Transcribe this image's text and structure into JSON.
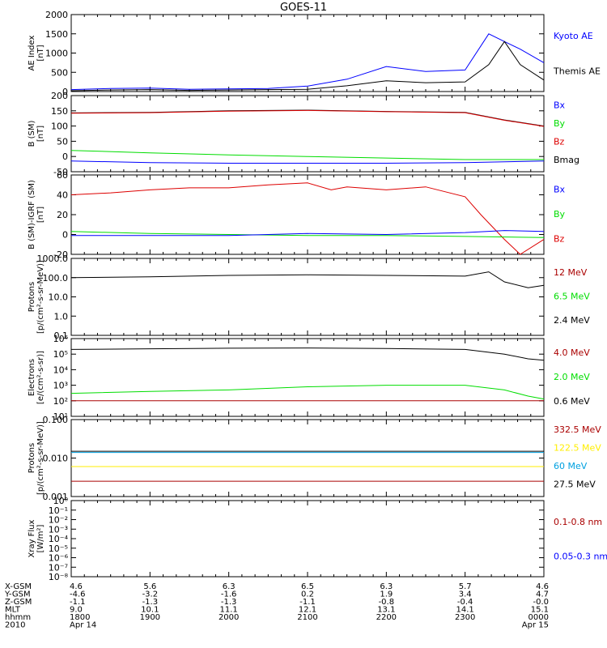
{
  "title": "GOES-11",
  "colors": {
    "blue": "#0000ff",
    "black": "#000000",
    "green": "#00dd00",
    "red": "#dd0000",
    "darkred": "#aa0000",
    "yellow": "#ffee00",
    "cyan": "#00a0e0"
  },
  "panels": [
    {
      "id": "ae",
      "ylabel": [
        "AE Index",
        "[nT]"
      ],
      "scale": "linear",
      "ylim": [
        0,
        2000
      ],
      "ticks": [
        "0",
        "500",
        "1000",
        "1500",
        "2000"
      ],
      "tick_values": [
        0,
        500,
        1000,
        1500,
        2000
      ],
      "legend": [
        {
          "label": "Kyoto AE",
          "color": "#0000ff"
        },
        {
          "label": "Themis AE",
          "color": "#000000"
        }
      ]
    },
    {
      "id": "b_sm",
      "ylabel": [
        "B (SM)",
        "[nT]"
      ],
      "scale": "linear",
      "ylim": [
        -50,
        200
      ],
      "ticks": [
        "-50",
        "0",
        "50",
        "100",
        "150",
        "200"
      ],
      "tick_values": [
        -50,
        0,
        50,
        100,
        150,
        200
      ],
      "legend": [
        {
          "label": "Bx",
          "color": "#0000ff"
        },
        {
          "label": "By",
          "color": "#00dd00"
        },
        {
          "label": "Bz",
          "color": "#dd0000"
        },
        {
          "label": "Bmag",
          "color": "#000000"
        }
      ]
    },
    {
      "id": "b_minus_igrf",
      "ylabel": [
        "B (SM)-IGRF (SM)",
        "[nT]"
      ],
      "scale": "linear",
      "ylim": [
        -20,
        60
      ],
      "ticks": [
        "-20",
        "0",
        "20",
        "40",
        "60"
      ],
      "tick_values": [
        -20,
        0,
        20,
        40,
        60
      ],
      "legend": [
        {
          "label": "Bx",
          "color": "#0000ff"
        },
        {
          "label": "By",
          "color": "#00dd00"
        },
        {
          "label": "Bz",
          "color": "#dd0000"
        }
      ]
    },
    {
      "id": "protons_low",
      "ylabel": [
        "Protons",
        "[p/(cm²-s-sr-MeV)]"
      ],
      "scale": "log",
      "ylim": [
        0.1,
        1000
      ],
      "ticks": [
        "0.1",
        "1.0",
        "10.0",
        "100.0",
        "1000.0"
      ],
      "tick_values": [
        0.1,
        1,
        10,
        100,
        1000
      ],
      "legend": [
        {
          "label": "12 MeV",
          "color": "#aa0000"
        },
        {
          "label": "6.5 MeV",
          "color": "#00dd00"
        },
        {
          "label": "2.4 MeV",
          "color": "#000000"
        }
      ]
    },
    {
      "id": "electrons",
      "ylabel": [
        "Electrons",
        "[e/(cm²-s-sr)]"
      ],
      "scale": "log",
      "ylim": [
        10,
        1000000
      ],
      "ticks": [
        "10¹",
        "10²",
        "10³",
        "10⁴",
        "10⁵",
        "10⁶"
      ],
      "tick_values": [
        10,
        100,
        1000,
        10000,
        100000,
        1000000
      ],
      "legend": [
        {
          "label": "4.0 MeV",
          "color": "#aa0000"
        },
        {
          "label": "2.0 MeV",
          "color": "#00dd00"
        },
        {
          "label": "0.6 MeV",
          "color": "#000000"
        }
      ]
    },
    {
      "id": "protons_high",
      "ylabel": [
        "Protons",
        "[p/(cm²-s-sr-MeV)]"
      ],
      "scale": "log",
      "ylim": [
        0.001,
        0.1
      ],
      "ticks": [
        "0.001",
        "0.010",
        "0.100"
      ],
      "tick_values": [
        0.001,
        0.01,
        0.1
      ],
      "legend": [
        {
          "label": "332.5 MeV",
          "color": "#aa0000"
        },
        {
          "label": "122.5 MeV",
          "color": "#ffee00"
        },
        {
          "label": "60 MeV",
          "color": "#00a0e0"
        },
        {
          "label": "27.5 MeV",
          "color": "#000000"
        }
      ]
    },
    {
      "id": "xray",
      "ylabel": [
        "Xray Flux",
        "[W/m²]"
      ],
      "scale": "log",
      "ylim": [
        1e-08,
        1
      ],
      "ticks": [
        "10⁻⁸",
        "10⁻⁷",
        "10⁻⁶",
        "10⁻⁵",
        "10⁻⁴",
        "10⁻³",
        "10⁻²",
        "10⁻¹",
        "10⁰"
      ],
      "tick_values": [
        1e-08,
        1e-07,
        1e-06,
        1e-05,
        0.0001,
        0.001,
        0.01,
        0.1,
        1
      ],
      "legend": [
        {
          "label": "0.1-0.8 nm",
          "color": "#aa0000"
        },
        {
          "label": "0.05-0.3 nm",
          "color": "#0000ff"
        }
      ]
    }
  ],
  "footer": {
    "row_labels": [
      "X-GSM",
      "Y-GSM",
      "Z-GSM",
      "MLT",
      "hhmm",
      "2010"
    ],
    "columns": [
      {
        "x_hours": 18,
        "values": [
          "4.6",
          "-4.6",
          "-1.1",
          "9.0",
          "1800",
          "Apr 14"
        ]
      },
      {
        "x_hours": 19,
        "values": [
          "5.6",
          "-3.2",
          "-1.3",
          "10.1",
          "1900",
          ""
        ]
      },
      {
        "x_hours": 20,
        "values": [
          "6.3",
          "-1.6",
          "-1.3",
          "11.1",
          "2000",
          ""
        ]
      },
      {
        "x_hours": 21,
        "values": [
          "6.5",
          "0.2",
          "-1.1",
          "12.1",
          "2100",
          ""
        ]
      },
      {
        "x_hours": 22,
        "values": [
          "6.3",
          "1.9",
          "-0.8",
          "13.1",
          "2200",
          ""
        ]
      },
      {
        "x_hours": 23,
        "values": [
          "5.7",
          "3.4",
          "-0.4",
          "14.1",
          "2300",
          ""
        ]
      },
      {
        "x_hours": 24,
        "values": [
          "4.6",
          "4.7",
          "-0.0",
          "15.1",
          "0000",
          "Apr 15"
        ]
      }
    ]
  },
  "chart_data": {
    "type": "line",
    "title": "GOES-11",
    "x_range_hours": [
      18,
      24
    ],
    "series": [
      {
        "panel": 0,
        "name": "Kyoto AE",
        "color": "#0000ff",
        "x": [
          18,
          18.5,
          19,
          19.5,
          20,
          20.5,
          21,
          21.5,
          22,
          22.5,
          23,
          23.3,
          23.5,
          23.7,
          24
        ],
        "y": [
          50,
          80,
          90,
          60,
          70,
          80,
          140,
          320,
          650,
          520,
          560,
          1500,
          1300,
          1100,
          750
        ]
      },
      {
        "panel": 0,
        "name": "Themis AE",
        "color": "#000000",
        "x": [
          18,
          18.5,
          19,
          19.5,
          20,
          20.5,
          21,
          21.5,
          22,
          22.5,
          23,
          23.3,
          23.5,
          23.7,
          24
        ],
        "y": [
          20,
          40,
          50,
          30,
          40,
          50,
          60,
          150,
          280,
          230,
          250,
          700,
          1300,
          700,
          300
        ]
      },
      {
        "panel": 1,
        "name": "Bmag",
        "color": "#000000",
        "x": [
          18,
          19,
          20,
          21,
          22,
          23,
          23.5,
          24
        ],
        "y": [
          143,
          145,
          150,
          152,
          148,
          145,
          120,
          100
        ]
      },
      {
        "panel": 1,
        "name": "Bz",
        "color": "#dd0000",
        "x": [
          18,
          19,
          20,
          21,
          22,
          23,
          23.5,
          24
        ],
        "y": [
          142,
          144,
          149,
          151,
          147,
          144,
          119,
          99
        ]
      },
      {
        "panel": 1,
        "name": "By",
        "color": "#00dd00",
        "x": [
          18,
          19,
          20,
          21,
          22,
          23,
          24
        ],
        "y": [
          20,
          12,
          5,
          0,
          -5,
          -10,
          -10
        ]
      },
      {
        "panel": 1,
        "name": "Bx",
        "color": "#0000ff",
        "x": [
          18,
          19,
          20,
          21,
          22,
          23,
          24
        ],
        "y": [
          -15,
          -20,
          -22,
          -22,
          -22,
          -20,
          -15
        ]
      },
      {
        "panel": 2,
        "name": "Bz",
        "color": "#dd0000",
        "x": [
          18,
          18.5,
          19,
          19.5,
          20,
          20.5,
          21,
          21.3,
          21.5,
          22,
          22.5,
          23,
          23.2,
          23.5,
          23.7,
          24
        ],
        "y": [
          40,
          42,
          45,
          47,
          47,
          50,
          52,
          45,
          48,
          45,
          48,
          38,
          20,
          -5,
          -20,
          -5
        ]
      },
      {
        "panel": 2,
        "name": "By",
        "color": "#00dd00",
        "x": [
          18,
          19,
          20,
          21,
          22,
          23,
          24
        ],
        "y": [
          3,
          1,
          0,
          -1,
          -1,
          -2,
          -3
        ]
      },
      {
        "panel": 2,
        "name": "Bx",
        "color": "#0000ff",
        "x": [
          18,
          19,
          20,
          21,
          22,
          23,
          23.5,
          24
        ],
        "y": [
          -1,
          -1,
          -1,
          1,
          0,
          2,
          4,
          3
        ]
      },
      {
        "panel": 3,
        "name": "2.4 MeV",
        "color": "#000000",
        "x": [
          18,
          19,
          20,
          21,
          22,
          23,
          23.3,
          23.5,
          23.8,
          24
        ],
        "y": [
          100,
          110,
          130,
          140,
          130,
          120,
          200,
          60,
          30,
          40
        ]
      },
      {
        "panel": 4,
        "name": "0.6 MeV",
        "color": "#000000",
        "x": [
          18,
          19,
          20,
          21,
          22,
          23,
          23.5,
          23.8,
          24
        ],
        "y": [
          200000,
          220000,
          240000,
          250000,
          230000,
          200000,
          100000,
          50000,
          40000
        ]
      },
      {
        "panel": 4,
        "name": "2.0 MeV",
        "color": "#00dd00",
        "x": [
          18,
          19,
          20,
          21,
          22,
          23,
          23.5,
          23.8,
          24
        ],
        "y": [
          300,
          400,
          500,
          800,
          1000,
          1000,
          500,
          200,
          130
        ]
      },
      {
        "panel": 4,
        "name": "4.0 MeV",
        "color": "#aa0000",
        "x": [
          18,
          19,
          20,
          21,
          22,
          23,
          24
        ],
        "y": [
          100,
          100,
          100,
          100,
          100,
          100,
          100
        ]
      },
      {
        "panel": 5,
        "name": "27.5 MeV",
        "color": "#000000",
        "x": [
          18,
          24
        ],
        "y": [
          0.015,
          0.015
        ]
      },
      {
        "panel": 5,
        "name": "60 MeV",
        "color": "#00a0e0",
        "x": [
          18,
          24
        ],
        "y": [
          0.014,
          0.014
        ]
      },
      {
        "panel": 5,
        "name": "122.5 MeV",
        "color": "#ffee00",
        "x": [
          18,
          24
        ],
        "y": [
          0.006,
          0.006
        ]
      },
      {
        "panel": 5,
        "name": "332.5 MeV",
        "color": "#aa0000",
        "x": [
          18,
          24
        ],
        "y": [
          0.0025,
          0.0025
        ]
      }
    ]
  }
}
